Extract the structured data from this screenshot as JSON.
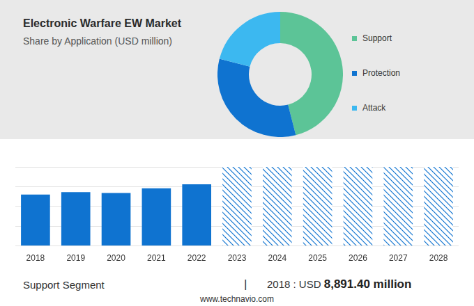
{
  "chart_data": [
    {
      "type": "doughnut",
      "title": "Electronic Warfare EW Market",
      "subtitle": "Share by Application (USD million)",
      "categories": [
        "Support",
        "Protection",
        "Attack"
      ],
      "values": [
        46,
        33,
        21
      ],
      "colors": [
        "#5cc497",
        "#0f73d0",
        "#3cb8f0"
      ],
      "legend": "right"
    },
    {
      "type": "bar",
      "categories": [
        "2018",
        "2019",
        "2020",
        "2021",
        "2022",
        "2023",
        "2024",
        "2025",
        "2026",
        "2027",
        "2028"
      ],
      "series": [
        {
          "color": "#0f73d0",
          "values": [
            65,
            68,
            67,
            73,
            78,
            null,
            null,
            null,
            null,
            null,
            null
          ]
        },
        {
          "color": "#0f73d0",
          "line_style": "hatched",
          "values": [
            null,
            null,
            null,
            null,
            null,
            100,
            100,
            100,
            100,
            100,
            100
          ]
        }
      ],
      "stacked": true,
      "ylim": [
        0,
        100
      ],
      "yticks": [
        0,
        25,
        50,
        75,
        100
      ],
      "grid": true,
      "tick_labels": "x"
    }
  ],
  "footer": {
    "label": "Support Segment",
    "separator": "|",
    "year_text": "2018 : USD",
    "value_text": "8,891.40 million"
  },
  "source": "www.technavio.com"
}
